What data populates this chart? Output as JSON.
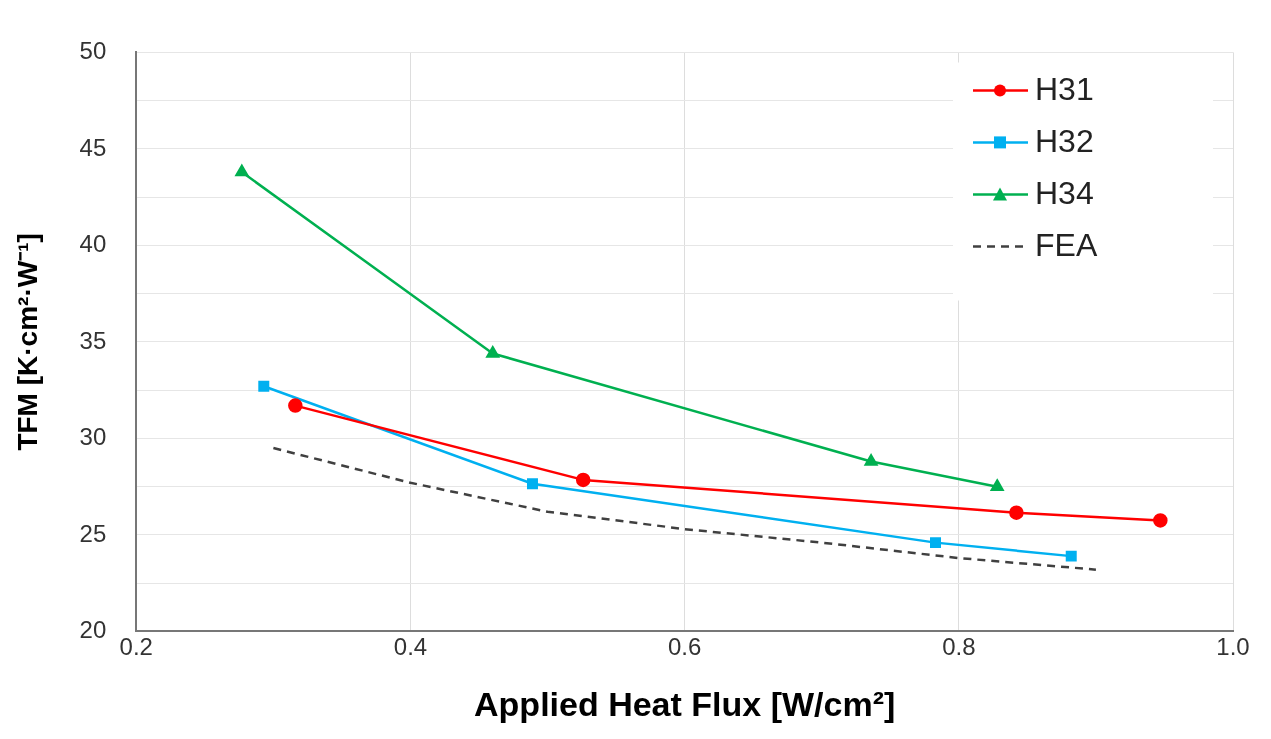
{
  "chart_data": {
    "type": "line",
    "xlabel": "Applied Heat Flux [W/cm²]",
    "ylabel": "TFM [K·cm²·W⁻¹]",
    "xlim": [
      0.2,
      1.0
    ],
    "xticks": [
      0.2,
      0.4,
      0.6,
      0.8,
      {
        "value": 1,
        "label": "1.0"
      }
    ],
    "ylim": [
      20,
      50
    ],
    "yticks": [
      20,
      {
        "value": 22.5,
        "label": null
      },
      25,
      {
        "value": 27.5,
        "label": null
      },
      30,
      {
        "value": 32.5,
        "label": null
      },
      35,
      {
        "value": 37.5,
        "label": null
      },
      40,
      {
        "value": 42.5,
        "label": null
      },
      45,
      {
        "value": 47.5,
        "label": null
      },
      50
    ],
    "grid": true,
    "legend": "top right",
    "series": [
      {
        "name": "H31",
        "color": "#ff0000",
        "marker": "circle",
        "line_style": "solid",
        "x": [
          0.316,
          0.526,
          0.842,
          0.947
        ],
        "values": [
          31.7,
          27.85,
          26.15,
          25.75
        ]
      },
      {
        "name": "H32",
        "color": "#00b0f0",
        "marker": "square",
        "line_style": "solid",
        "x": [
          0.293,
          0.489,
          0.783,
          0.882
        ],
        "values": [
          32.7,
          27.65,
          24.6,
          23.9
        ]
      },
      {
        "name": "H34",
        "color": "#00b050",
        "marker": "triangle",
        "line_style": "solid",
        "x": [
          0.277,
          0.46,
          0.736,
          0.828
        ],
        "values": [
          43.8,
          34.4,
          28.8,
          27.5
        ]
      },
      {
        "name": "FEA",
        "color": "#404040",
        "marker": "none",
        "line_style": "dashed",
        "x": [
          0.3,
          0.4,
          0.5,
          0.6,
          0.7,
          0.8,
          0.9
        ],
        "values": [
          29.5,
          27.7,
          26.2,
          25.3,
          24.6,
          23.8,
          23.2
        ]
      }
    ]
  }
}
